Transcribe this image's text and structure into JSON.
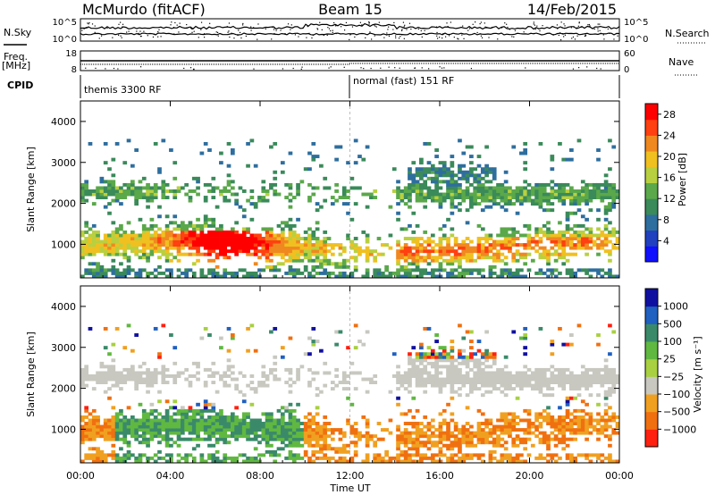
{
  "header": {
    "station": "McMurdo (fitACF)",
    "beam": "Beam 15",
    "date": "14/Feb/2015"
  },
  "sidebar": {
    "nsky": "N.Sky",
    "nsearch": "N.Search",
    "freq": "Freq.",
    "mhz": "[MHz]",
    "nave": "Nave",
    "cpid": "CPID"
  },
  "cpid_segments": [
    {
      "label": "themis 3300 RF",
      "start_hour": 0
    },
    {
      "label": "normal (fast) 151 RF",
      "start_hour": 12
    }
  ],
  "noise_panel": {
    "left_ticks": [
      "10^5",
      "10^0"
    ],
    "right_ticks": [
      "10^5",
      "10^0"
    ]
  },
  "freq_panel": {
    "left_ticks": [
      "18",
      "8"
    ],
    "right_ticks": [
      "60",
      "0"
    ]
  },
  "colors": {
    "power": [
      "#1010ff",
      "#2040c0",
      "#2e6e9e",
      "#3a8a5a",
      "#5aa84a",
      "#b8d040",
      "#f0c020",
      "#f08820",
      "#ff4010",
      "#ff0000"
    ],
    "velocity": [
      "#1010a0",
      "#2060c0",
      "#3a8a6a",
      "#60b840",
      "#a8d040",
      "#c8c8c0",
      "#f0a020",
      "#f07010",
      "#ff2010"
    ],
    "flag": "#ffffff"
  },
  "chart_data": [
    {
      "type": "heatmap",
      "title": "Power",
      "xlabel": "Time UT",
      "ylabel": "Slant Range [km]",
      "xlim": [
        0,
        24
      ],
      "ylim": [
        180,
        4500
      ],
      "yticks": [
        "1000",
        "2000",
        "3000",
        "4000"
      ],
      "colorbar": {
        "label": "Power [dB]",
        "ticks": [
          "4",
          "8",
          "12",
          "16",
          "20",
          "24",
          "28"
        ],
        "range": [
          0,
          30
        ]
      }
    },
    {
      "type": "heatmap",
      "title": "Velocity",
      "xlabel": "Time UT",
      "ylabel": "Slant Range [km]",
      "xlim": [
        0,
        24
      ],
      "ylim": [
        180,
        4500
      ],
      "yticks": [
        "1000",
        "2000",
        "3000",
        "4000"
      ],
      "colorbar": {
        "label": "Velocity [m s⁻¹]",
        "ticks": [
          "1000",
          "500",
          "100",
          "25",
          "−25",
          "−100",
          "−500",
          "−1000"
        ]
      }
    }
  ],
  "time_axis": {
    "ticks": [
      "00:00",
      "04:00",
      "08:00",
      "12:00",
      "16:00",
      "20:00",
      "00:00"
    ],
    "label": "Time UT"
  }
}
